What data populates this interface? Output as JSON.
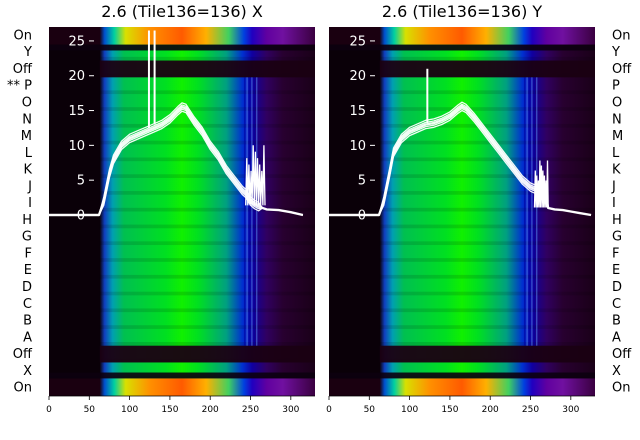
{
  "chart_data": [
    {
      "type": "heatmap",
      "title": "2.6 (Tile136=136) X",
      "xlabel": "",
      "ylabel": "",
      "xlim": [
        0,
        330
      ],
      "ylim": [
        -26,
        27
      ],
      "xticks": [
        0,
        50,
        100,
        150,
        200,
        250,
        300
      ],
      "yticks": [
        0,
        5,
        10,
        15,
        20,
        25
      ],
      "ytick_labels": [
        "0",
        "5",
        "10",
        "15",
        "20",
        "25"
      ],
      "row_labels": [
        "On",
        "Y",
        "Off",
        "** P",
        "O",
        "N",
        "M",
        "L",
        "K",
        "J",
        "I",
        "H",
        "G",
        "F",
        "E",
        "D",
        "C",
        "B",
        "A",
        "Off",
        "X",
        "On"
      ],
      "grid": false,
      "colormap": "spectral",
      "bands": {
        "dark_before": 67,
        "green_center": 165,
        "blue_edge": 248,
        "dark_after": 270
      },
      "spikes": [
        {
          "x": 124,
          "y": 26.5
        },
        {
          "x": 131,
          "y": 26.5
        }
      ],
      "noise_region": {
        "x_start": 244,
        "x_end": 268,
        "y_max": 11.5
      },
      "series": [
        {
          "color": "#ffffff",
          "x": [
            0,
            62,
            68,
            75,
            80,
            90,
            100,
            110,
            120,
            130,
            140,
            150,
            160,
            165,
            170,
            180,
            190,
            200,
            210,
            220,
            230,
            240,
            245,
            250,
            255,
            260,
            265,
            270,
            285,
            300,
            315
          ],
          "y": [
            0,
            0,
            2,
            6,
            8,
            10,
            11,
            11.5,
            12,
            12.5,
            13,
            13.8,
            15,
            15.5,
            15.3,
            13.5,
            12,
            10,
            8.5,
            6.5,
            5,
            3.5,
            3,
            2,
            1.5,
            1.2,
            1,
            0.8,
            0.7,
            0.4,
            0
          ]
        }
      ]
    },
    {
      "type": "heatmap",
      "title": "2.6 (Tile136=136) Y",
      "xlabel": "",
      "ylabel": "",
      "xlim": [
        0,
        330
      ],
      "ylim": [
        -26,
        27
      ],
      "xticks": [
        0,
        50,
        100,
        150,
        200,
        250,
        300
      ],
      "yticks": [
        0,
        5,
        10,
        15,
        20,
        25
      ],
      "ytick_labels": [
        "0",
        "5",
        "10",
        "15",
        "20",
        "25"
      ],
      "row_labels": [
        "On",
        "Y",
        "Off",
        "P",
        "O",
        "N",
        "M",
        "L",
        "K",
        "J",
        "I",
        "H",
        "G",
        "F",
        "E",
        "D",
        "C",
        "B",
        "A",
        "Off",
        "X",
        "On"
      ],
      "grid": false,
      "colormap": "spectral",
      "bands": {
        "dark_before": 67,
        "green_center": 165,
        "blue_edge": 248,
        "dark_after": 270
      },
      "spikes": [
        {
          "x": 122,
          "y": 21
        }
      ],
      "noise_region": {
        "x_start": 255,
        "x_end": 272,
        "y_max": 9
      },
      "series": [
        {
          "color": "#ffffff",
          "x": [
            0,
            62,
            68,
            75,
            80,
            90,
            100,
            110,
            120,
            130,
            140,
            150,
            160,
            165,
            170,
            180,
            190,
            200,
            210,
            220,
            230,
            240,
            250,
            260,
            268,
            272,
            280,
            290,
            300,
            310,
            325
          ],
          "y": [
            0,
            0,
            2,
            6,
            9,
            11,
            12,
            12.5,
            13,
            13.2,
            13.6,
            14.2,
            15.2,
            15.6,
            15.3,
            14,
            12.5,
            11,
            9.5,
            8,
            6.5,
            5,
            4,
            3.5,
            3.2,
            1,
            0.8,
            0.7,
            0.5,
            0.3,
            0
          ]
        }
      ]
    }
  ]
}
